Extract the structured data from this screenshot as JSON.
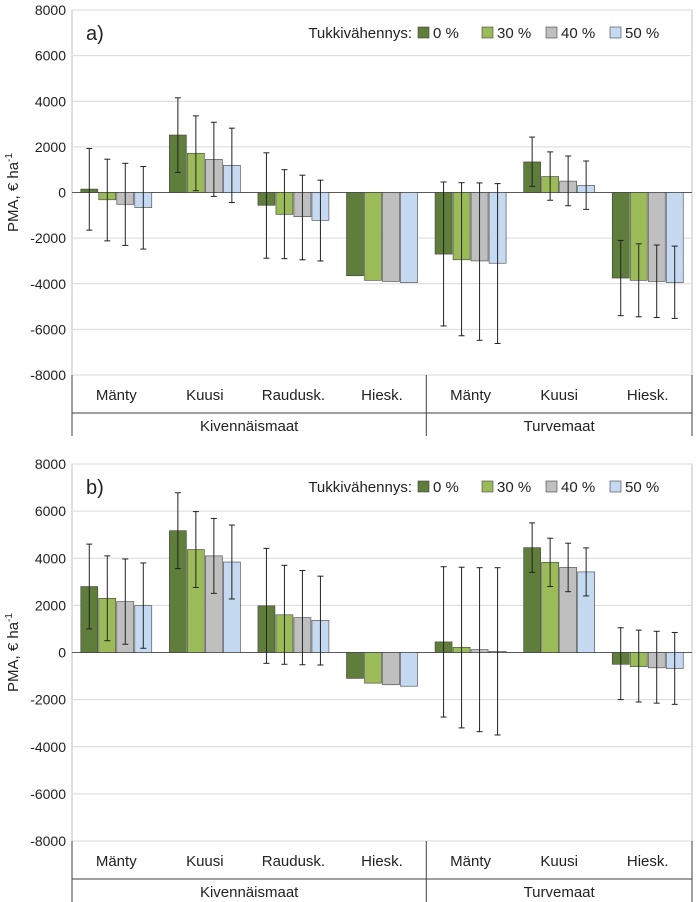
{
  "chart_data": [
    {
      "type": "bar",
      "panel_label": "a)",
      "ylabel": "PMA, € ha",
      "ylabel_sup": "-1",
      "ylim": [
        -8000,
        8000
      ],
      "yticks": [
        -8000,
        -6000,
        -4000,
        -2000,
        0,
        2000,
        4000,
        6000,
        8000
      ],
      "grid": true,
      "legend_title": "Tukkivähennys:",
      "legend_position": "top-right",
      "categories": [
        "Mänty",
        "Kuusi",
        "Rauduskoivu.",
        "Hieskoivu.",
        "Mänty",
        "Kuusi",
        "Hieskoivu."
      ],
      "category_labels": [
        "Mänty",
        "Kuusi",
        "Raudusk.",
        "Hiesk.",
        "Mänty",
        "Kuusi",
        "Hiesk."
      ],
      "groups": [
        {
          "label": "Kivennäismaat",
          "span": [
            0,
            3
          ]
        },
        {
          "label": "Turvemaat",
          "span": [
            4,
            6
          ]
        }
      ],
      "series": [
        {
          "name": "0 %",
          "color": "#5f7e3c",
          "values": [
            150,
            2520,
            -560,
            -3650,
            -2700,
            1340,
            -3750
          ],
          "err_low": [
            -1650,
            880,
            -2880,
            null,
            -5850,
            270,
            -5400
          ],
          "err_high": [
            1930,
            4150,
            1740,
            null,
            460,
            2430,
            -2100
          ]
        },
        {
          "name": "30 %",
          "color": "#9bbb59",
          "values": [
            -320,
            1720,
            -960,
            -3850,
            -2950,
            700,
            -3850
          ],
          "err_low": [
            -2120,
            80,
            -2900,
            null,
            -6280,
            -340,
            -5450
          ],
          "err_high": [
            1460,
            3360,
            1000,
            null,
            430,
            1780,
            -2250
          ]
        },
        {
          "name": "40 %",
          "color": "#bfbfbf",
          "values": [
            -520,
            1450,
            -1060,
            -3900,
            -3000,
            500,
            -3900
          ],
          "err_low": [
            -2320,
            -170,
            -2950,
            null,
            -6480,
            -580,
            -5480
          ],
          "err_high": [
            1280,
            3080,
            760,
            null,
            420,
            1600,
            -2300
          ]
        },
        {
          "name": "50 %",
          "color": "#c5d9f1",
          "values": [
            -660,
            1190,
            -1220,
            -3950,
            -3100,
            310,
            -3950
          ],
          "err_low": [
            -2480,
            -440,
            -3000,
            null,
            -6620,
            -740,
            -5520
          ],
          "err_high": [
            1140,
            2820,
            540,
            null,
            390,
            1380,
            -2350
          ]
        }
      ]
    },
    {
      "type": "bar",
      "panel_label": "b)",
      "ylabel": "PMA, € ha",
      "ylabel_sup": "-1",
      "ylim": [
        -8000,
        8000
      ],
      "yticks": [
        -8000,
        -6000,
        -4000,
        -2000,
        0,
        2000,
        4000,
        6000,
        8000
      ],
      "grid": true,
      "legend_title": "Tukkivähennys:",
      "legend_position": "top-right",
      "categories": [
        "Mänty",
        "Kuusi",
        "Rauduskoivu.",
        "Hieskoivu.",
        "Mänty",
        "Kuusi",
        "Hieskoivu."
      ],
      "category_labels": [
        "Mänty",
        "Kuusi",
        "Raudusk.",
        "Hiesk.",
        "Mänty",
        "Kuusi",
        "Hiesk."
      ],
      "groups": [
        {
          "label": "Kivennäismaat",
          "span": [
            0,
            3
          ]
        },
        {
          "label": "Turvemaat",
          "span": [
            4,
            6
          ]
        }
      ],
      "series": [
        {
          "name": "0 %",
          "color": "#5f7e3c",
          "values": [
            2800,
            5170,
            1980,
            -1100,
            450,
            4450,
            -500
          ],
          "err_low": [
            1000,
            3560,
            -460,
            null,
            -2740,
            3400,
            -2000
          ],
          "err_high": [
            4600,
            6780,
            4420,
            null,
            3640,
            5500,
            1050
          ]
        },
        {
          "name": "30 %",
          "color": "#9bbb59",
          "values": [
            2300,
            4370,
            1600,
            -1300,
            220,
            3830,
            -600
          ],
          "err_low": [
            500,
            2760,
            -500,
            null,
            -3200,
            2800,
            -2100
          ],
          "err_high": [
            4100,
            5980,
            3700,
            null,
            3620,
            4850,
            950
          ]
        },
        {
          "name": "40 %",
          "color": "#bfbfbf",
          "values": [
            2160,
            4100,
            1480,
            -1370,
            120,
            3610,
            -650
          ],
          "err_low": [
            350,
            2510,
            -520,
            null,
            -3360,
            2580,
            -2150
          ],
          "err_high": [
            3970,
            5690,
            3480,
            null,
            3600,
            4640,
            900
          ]
        },
        {
          "name": "50 %",
          "color": "#c5d9f1",
          "values": [
            1990,
            3840,
            1360,
            -1430,
            50,
            3420,
            -680
          ],
          "err_low": [
            180,
            2270,
            -530,
            null,
            -3500,
            2400,
            -2200
          ],
          "err_high": [
            3800,
            5410,
            3240,
            null,
            3600,
            4440,
            850
          ]
        }
      ]
    }
  ]
}
